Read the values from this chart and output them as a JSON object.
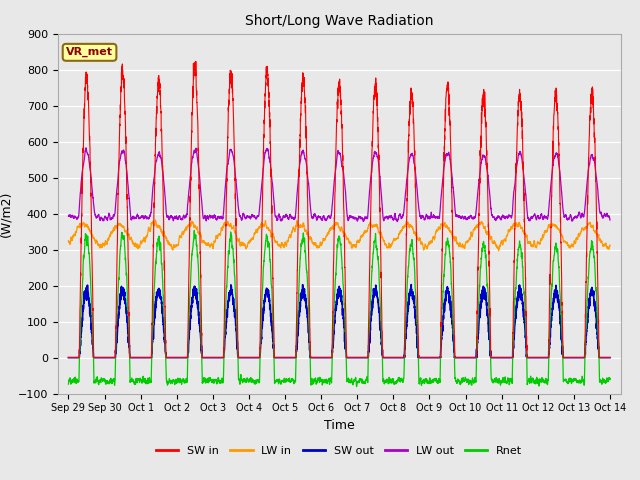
{
  "title": "Short/Long Wave Radiation",
  "xlabel": "Time",
  "ylabel": "(W/m2)",
  "ylim": [
    -100,
    900
  ],
  "background_color": "#e8e8e8",
  "plot_bg_color": "#e8e8e8",
  "grid_color": "#ffffff",
  "annotation_text": "VR_met",
  "annotation_bg": "#ffffa0",
  "annotation_border": "#8b6914",
  "annotation_text_color": "#8b0000",
  "legend_labels": [
    "SW in",
    "LW in",
    "SW out",
    "LW out",
    "Rnet"
  ],
  "legend_colors": [
    "#ff0000",
    "#ff9900",
    "#0000cc",
    "#aa00cc",
    "#00cc00"
  ],
  "yticks": [
    -100,
    0,
    100,
    200,
    300,
    400,
    500,
    600,
    700,
    800,
    900
  ],
  "xtick_labels": [
    "Sep 29",
    "Sep 30",
    "Oct 1",
    "Oct 2",
    "Oct 3",
    "Oct 4",
    "Oct 5",
    "Oct 6",
    "Oct 7",
    "Oct 8",
    "Oct 9",
    "Oct 10",
    "Oct 11",
    "Oct 12",
    "Oct 13",
    "Oct 14"
  ],
  "num_days": 15,
  "pts_per_day": 288,
  "sw_peaks": [
    780,
    790,
    770,
    805,
    790,
    795,
    775,
    760,
    755,
    730,
    758,
    728,
    730,
    730,
    730
  ],
  "lw_night_base": 340,
  "lw_out_night": 390,
  "sw_out_day_peak": 185,
  "rnet_day_peak_factor": 0.43,
  "rnet_night": -65
}
